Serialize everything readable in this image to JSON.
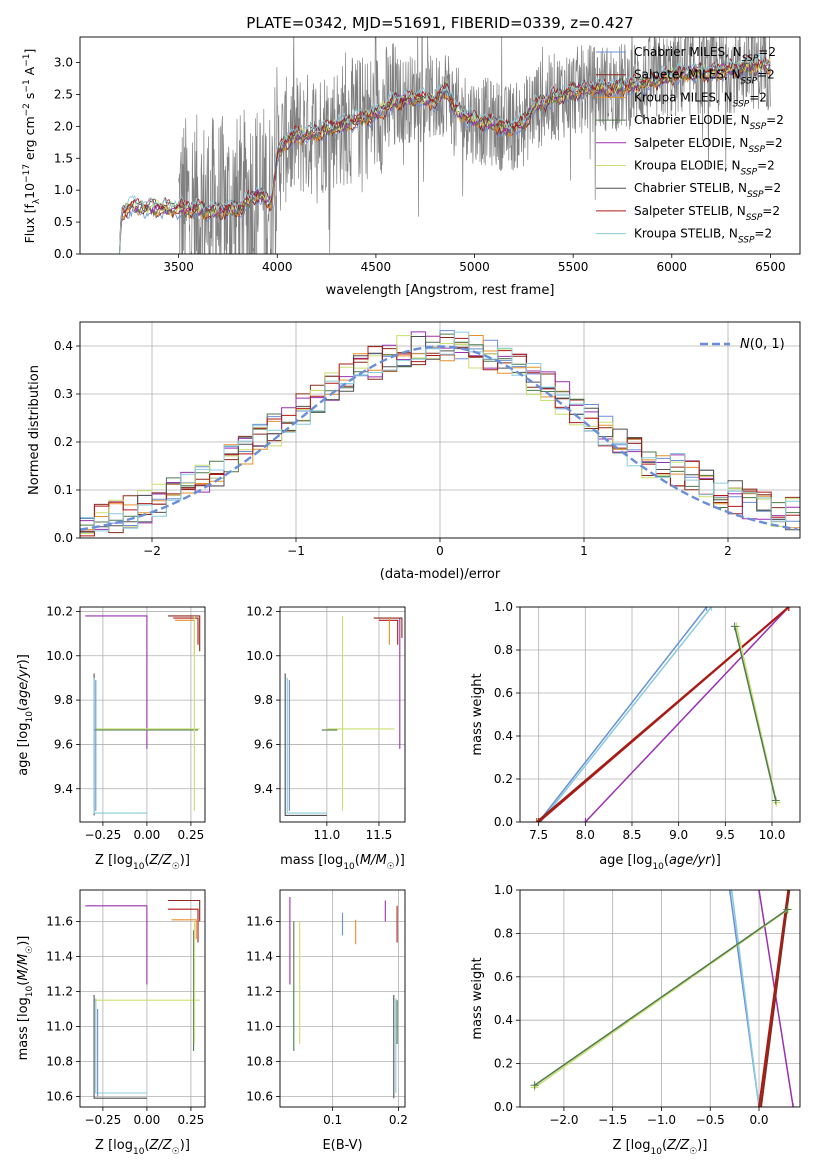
{
  "colors": {
    "Chabrier MILES": "#6a8fd8",
    "Salpeter MILES": "#8a2a1a",
    "Kroupa MILES": "#e8902a",
    "Chabrier ELODIE": "#4f7a4f",
    "Salpeter ELODIE": "#9a30b0",
    "Kroupa ELODIE": "#c8e070",
    "Chabrier STELIB": "#505050",
    "Salpeter STELIB": "#b01818",
    "Kroupa STELIB": "#88ccdd",
    "normal": "#6a8fd8",
    "data": "#808080"
  },
  "chart_data": [
    {
      "id": "spectrum",
      "type": "line",
      "title": "PLATE=0342, MJD=51691, FIBERID=0339, z=0.427",
      "xlabel": "wavelength [Angstrom, rest frame]",
      "ylabel": "Flux [f_λ 10^-17 erg cm^-2 s^-1 A^-1]",
      "xlim": [
        3000,
        6650
      ],
      "ylim": [
        0,
        3.4
      ],
      "xticks": [
        3500,
        4000,
        4500,
        5000,
        5500,
        6000,
        6500
      ],
      "yticks": [
        0.0,
        0.5,
        1.0,
        1.5,
        2.0,
        2.5,
        3.0
      ],
      "legend_position": "top-right",
      "legend": [
        "Chabrier MILES, N_SSP=2",
        "Salpeter MILES, N_SSP=2",
        "Kroupa MILES, N_SSP=2",
        "Chabrier ELODIE, N_SSP=2",
        "Salpeter ELODIE, N_SSP=2",
        "Kroupa ELODIE, N_SSP=2",
        "Chabrier STELIB, N_SSP=2",
        "Salpeter STELIB, N_SSP=2",
        "Kroupa STELIB, N_SSP=2"
      ],
      "model_anchor_x": [
        3200,
        3210,
        3250,
        3350,
        3500,
        3650,
        3800,
        3900,
        3970,
        4000,
        4050,
        4100,
        4200,
        4300,
        4400,
        4500,
        4600,
        4700,
        4800,
        4860,
        4900,
        5000,
        5100,
        5170,
        5250,
        5300,
        5400,
        5500,
        5600,
        5700,
        5800,
        5900,
        6000,
        6100,
        6200,
        6300,
        6400,
        6500
      ],
      "model_anchor_y": [
        0.0,
        0.62,
        0.75,
        0.72,
        0.72,
        0.68,
        0.7,
        0.95,
        0.8,
        1.55,
        1.8,
        1.85,
        1.9,
        2.0,
        2.1,
        2.2,
        2.4,
        2.45,
        2.4,
        2.6,
        2.25,
        2.1,
        2.05,
        1.95,
        2.05,
        2.3,
        2.45,
        2.55,
        2.6,
        2.6,
        2.65,
        2.7,
        2.8,
        2.85,
        2.85,
        2.9,
        2.95,
        2.95
      ],
      "data_range": [
        3500,
        6500
      ]
    },
    {
      "id": "residuals",
      "type": "histogram",
      "xlabel": "(data-model)/error",
      "ylabel": "Normed distribution",
      "xlim": [
        -2.5,
        2.5
      ],
      "ylim": [
        0,
        0.45
      ],
      "xticks": [
        -2,
        -1,
        0,
        1,
        2
      ],
      "yticks": [
        0.0,
        0.1,
        0.2,
        0.3,
        0.4
      ],
      "bin_width": 0.1,
      "legend_position": "top-right",
      "legend": [
        "N(0,1)"
      ]
    },
    {
      "id": "age-vs-Z",
      "type": "line",
      "xlabel": "Z [log10(Z/Z☉)]",
      "ylabel": "age [log10(age/yr)]",
      "xlim": [
        -0.38,
        0.33
      ],
      "ylim": [
        9.25,
        10.22
      ],
      "xticks": [
        -0.25,
        0.0,
        0.25
      ],
      "xtick_labels": [
        "-0.25",
        "0.00",
        "0.25"
      ],
      "yticks": [
        9.4,
        9.6,
        9.8,
        10.0,
        10.2
      ]
    },
    {
      "id": "age-vs-mass",
      "type": "line",
      "xlabel": "mass [log10(M/M☉)]",
      "ylabel": "",
      "xlim": [
        10.55,
        11.75
      ],
      "ylim": [
        9.25,
        10.22
      ],
      "xticks": [
        11.0,
        11.5
      ],
      "yticks": [
        9.4,
        9.6,
        9.8,
        10.0,
        10.2
      ]
    },
    {
      "id": "weight-vs-age",
      "type": "line",
      "xlabel": "age [log10(age/yr)]",
      "ylabel": "mass weight",
      "xlim": [
        7.3,
        10.3
      ],
      "ylim": [
        0,
        1.0
      ],
      "xticks": [
        7.5,
        8.0,
        8.5,
        9.0,
        9.5,
        10.0
      ],
      "yticks": [
        0.0,
        0.2,
        0.4,
        0.6,
        0.8,
        1.0
      ],
      "series": [
        {
          "model": "Chabrier MILES",
          "x": [
            7.5,
            9.3
          ],
          "y": [
            0.0,
            1.0
          ]
        },
        {
          "model": "Kroupa STELIB",
          "x": [
            7.52,
            9.35
          ],
          "y": [
            0.0,
            1.0
          ]
        },
        {
          "model": "Salpeter ELODIE",
          "x": [
            8.0,
            10.18
          ],
          "y": [
            0.0,
            1.0
          ]
        },
        {
          "model": "Salpeter MILES",
          "x": [
            7.48,
            10.18
          ],
          "y": [
            0.0,
            1.0
          ]
        },
        {
          "model": "Salpeter STELIB",
          "x": [
            7.5,
            10.18
          ],
          "y": [
            0.0,
            1.0
          ]
        },
        {
          "model": "Kroupa ELODIE",
          "x": [
            9.62,
            10.05
          ],
          "y": [
            0.91,
            0.09
          ]
        },
        {
          "model": "Chabrier ELODIE",
          "x": [
            9.6,
            10.04
          ],
          "y": [
            0.91,
            0.1
          ]
        }
      ]
    },
    {
      "id": "mass-vs-Z",
      "type": "line",
      "xlabel": "Z [log10(Z/Z☉)]",
      "ylabel": "mass [log10(M/M☉)]",
      "xlim": [
        -0.38,
        0.33
      ],
      "ylim": [
        10.54,
        11.78
      ],
      "xticks": [
        -0.25,
        0.0,
        0.25
      ],
      "xtick_labels": [
        "-0.25",
        "0.00",
        "0.25"
      ],
      "yticks": [
        10.6,
        10.8,
        11.0,
        11.2,
        11.4,
        11.6
      ]
    },
    {
      "id": "mass-vs-EBV",
      "type": "line",
      "xlabel": "E(B-V)",
      "ylabel": "",
      "xlim": [
        0.02,
        0.21
      ],
      "ylim": [
        10.54,
        11.78
      ],
      "xticks": [
        0.1,
        0.2
      ],
      "yticks": [
        10.6,
        10.8,
        11.0,
        11.2,
        11.4,
        11.6
      ]
    },
    {
      "id": "weight-vs-Z",
      "type": "line",
      "xlabel": "Z [log10(Z/Z☉)]",
      "ylabel": "mass weight",
      "xlim": [
        -2.45,
        0.42
      ],
      "ylim": [
        0,
        1.0
      ],
      "xticks": [
        -2.0,
        -1.5,
        -1.0,
        -0.5,
        0.0
      ],
      "yticks": [
        0.0,
        0.2,
        0.4,
        0.6,
        0.8,
        1.0
      ],
      "series": [
        {
          "model": "Chabrier MILES",
          "x": [
            -0.3,
            0.0
          ],
          "y": [
            1.0,
            0.0
          ]
        },
        {
          "model": "Kroupa STELIB",
          "x": [
            -0.28,
            0.0
          ],
          "y": [
            1.0,
            0.0
          ]
        },
        {
          "model": "Salpeter ELODIE",
          "x": [
            0.0,
            0.35
          ],
          "y": [
            1.0,
            0.0
          ]
        },
        {
          "model": "Salpeter STELIB",
          "x": [
            0.0,
            0.3
          ],
          "y": [
            0.0,
            1.0
          ]
        },
        {
          "model": "Salpeter MILES",
          "x": [
            0.02,
            0.31
          ],
          "y": [
            0.0,
            1.0
          ]
        },
        {
          "model": "Kroupa ELODIE",
          "x": [
            -2.3,
            0.3
          ],
          "y": [
            0.09,
            0.91
          ]
        },
        {
          "model": "Chabrier ELODIE",
          "x": [
            -2.3,
            0.29
          ],
          "y": [
            0.1,
            0.91
          ]
        }
      ]
    }
  ]
}
